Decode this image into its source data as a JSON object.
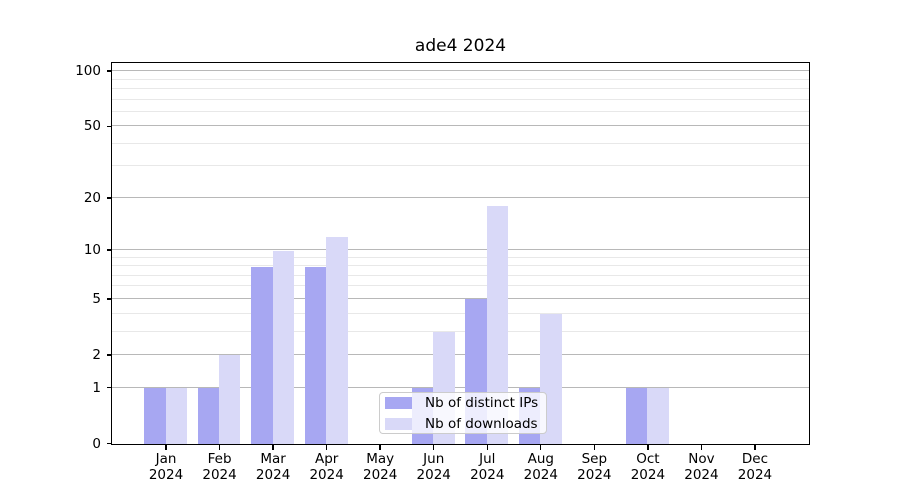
{
  "chart_data": {
    "type": "bar",
    "title": "ade4 2024",
    "categories": [
      "Jan",
      "Feb",
      "Mar",
      "Apr",
      "May",
      "Jun",
      "Jul",
      "Aug",
      "Sep",
      "Oct",
      "Nov",
      "Dec"
    ],
    "x_year_label": "2024",
    "series": [
      {
        "name": "Nb of distinct IPs",
        "color": "#a7a7f2",
        "values": [
          1,
          1,
          8,
          8,
          0,
          1,
          5,
          1,
          0,
          1,
          0,
          0
        ]
      },
      {
        "name": "Nb of downloads",
        "color": "#d9d9f8",
        "values": [
          1,
          2,
          10,
          12,
          0,
          3,
          18,
          4,
          0,
          1,
          0,
          0
        ]
      }
    ],
    "y_axis": {
      "scale": "log1p",
      "max": 110,
      "major_ticks": [
        0,
        1,
        2,
        5,
        10,
        20,
        50,
        100
      ],
      "minor_gridlines": [
        3,
        4,
        6,
        7,
        8,
        9,
        30,
        40,
        60,
        70,
        80,
        90
      ]
    },
    "x_axis": {
      "unit": "month"
    },
    "legend": {
      "position": "inside-bottom-center"
    },
    "grid": {
      "major_color": "#b8b8b8",
      "minor_color": "#e8e8e8"
    },
    "bar_width_fraction": 0.4
  }
}
